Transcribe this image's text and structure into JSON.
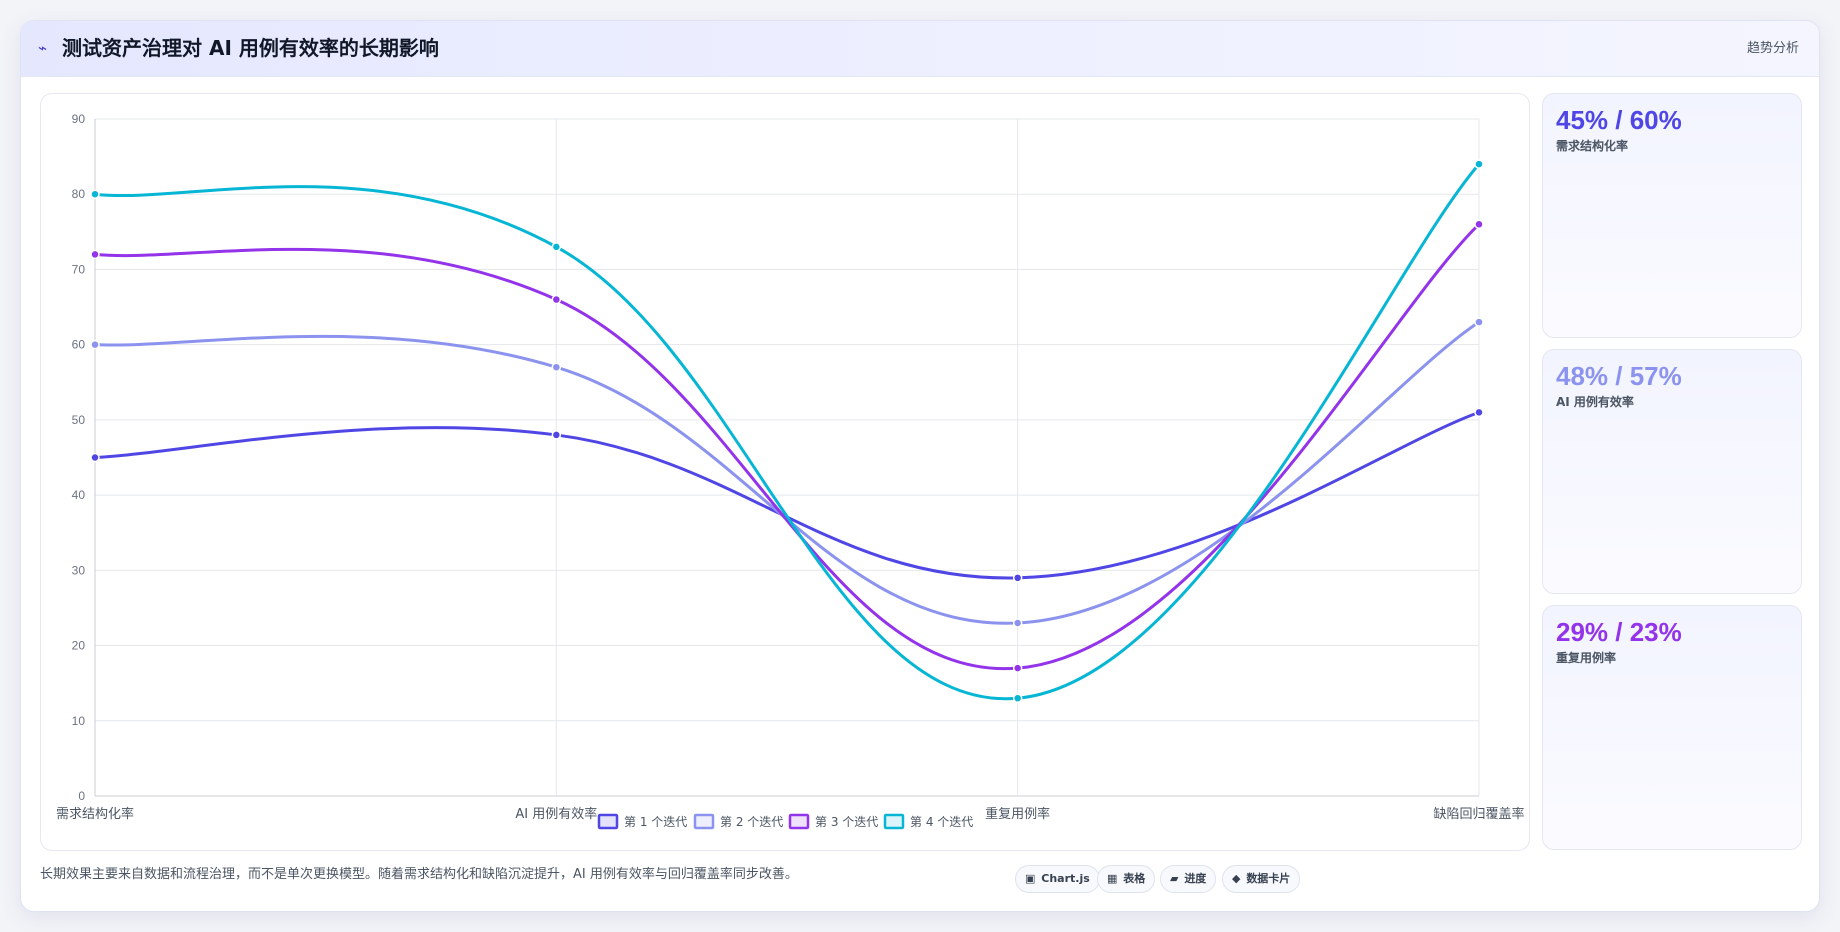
{
  "header": {
    "icon": "lightning-icon",
    "title": "测试资产治理对 AI 用例有效率的长期影响",
    "right_label": "趋势分析"
  },
  "colors": {
    "series1": "#4f46e5",
    "series2": "#8b93ee",
    "series3": "#9333ea",
    "series4": "#06b6d4"
  },
  "chart_data": {
    "type": "line",
    "categories": [
      "需求结构化率",
      "AI 用例有效率",
      "重复用例率",
      "缺陷回归覆盖率"
    ],
    "series": [
      {
        "name": "第 1 个迭代",
        "values": [
          45,
          48,
          29,
          51
        ]
      },
      {
        "name": "第 2 个迭代",
        "values": [
          60,
          57,
          23,
          63
        ]
      },
      {
        "name": "第 3 个迭代",
        "values": [
          72,
          66,
          17,
          76
        ]
      },
      {
        "name": "第 4 个迭代",
        "values": [
          80,
          73,
          13,
          84
        ]
      }
    ],
    "ylim": [
      0,
      90
    ],
    "yticks": [
      0,
      10,
      20,
      30,
      40,
      50,
      60,
      70,
      80,
      90
    ],
    "grid": true,
    "legend": "bottom",
    "title": "",
    "xlabel": "",
    "ylabel": ""
  },
  "side_cards": [
    {
      "value": "45% / 60%",
      "label": "需求结构化率",
      "color": "#4f46e5"
    },
    {
      "value": "48% / 57%",
      "label": "AI 用例有效率",
      "color": "#8b93ee"
    },
    {
      "value": "29% / 23%",
      "label": "重复用例率",
      "color": "#9333ea"
    }
  ],
  "footer": {
    "note": "长期效果主要来自数据和流程治理，而不是单次更换模型。随着需求结构化和缺陷沉淀提升，AI 用例有效率与回归覆盖率同步改善。",
    "chips": [
      {
        "icon": "▣",
        "label": "Chart.js"
      },
      {
        "icon": "▦",
        "label": "表格"
      },
      {
        "icon": "▰",
        "label": "进度"
      },
      {
        "icon": "◆",
        "label": "数据卡片"
      }
    ]
  }
}
